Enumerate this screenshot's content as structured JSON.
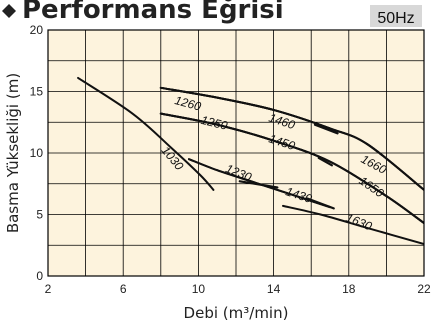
{
  "header": {
    "title": "Performans Eğrisi",
    "frequency_badge": "50Hz"
  },
  "colors": {
    "plot_background": "#fdf3dd",
    "grid": "#000000",
    "curves": "#111111",
    "badge_background": "#d8d8d8"
  },
  "chart_data": {
    "type": "line",
    "title": "Performans Eğrisi",
    "xlabel": "Debi (m³/min)",
    "ylabel": "Basma Yüksekliği (m)",
    "xlim": [
      2,
      22
    ],
    "ylim": [
      0,
      20
    ],
    "xticks": [
      2,
      6,
      10,
      14,
      18,
      22
    ],
    "yticks": [
      0,
      5,
      10,
      15,
      20
    ],
    "grid": true,
    "series": [
      {
        "name": "1030",
        "x": [
          3.6,
          6.5,
          8.5,
          10.1,
          10.8
        ],
        "y": [
          16.1,
          13.2,
          10.5,
          8.2,
          7.0
        ]
      },
      {
        "name": "1260",
        "x": [
          8.0,
          11.0,
          14.0,
          17.0,
          19.0,
          22.0
        ],
        "y": [
          15.3,
          14.5,
          13.5,
          12.0,
          10.7,
          7.0
        ]
      },
      {
        "name": "1460",
        "x": [
          8.0,
          11.0,
          14.0,
          17.0,
          19.0,
          22.0
        ],
        "y": [
          15.3,
          14.5,
          13.5,
          12.0,
          10.7,
          7.0
        ]
      },
      {
        "name": "1660",
        "x": [
          8.0,
          11.0,
          14.0,
          17.0,
          19.0,
          22.0
        ],
        "y": [
          15.3,
          14.5,
          13.5,
          12.0,
          10.7,
          7.0
        ]
      },
      {
        "name": "1250",
        "x": [
          8.0,
          11.0,
          14.0,
          17.0,
          20.0,
          22.0
        ],
        "y": [
          13.2,
          12.3,
          11.0,
          9.3,
          6.5,
          4.3
        ]
      },
      {
        "name": "1450",
        "x": [
          8.0,
          11.0,
          14.0,
          17.0,
          20.0,
          22.0
        ],
        "y": [
          13.2,
          12.3,
          11.0,
          9.3,
          6.5,
          4.3
        ]
      },
      {
        "name": "1650",
        "x": [
          8.0,
          11.0,
          14.0,
          17.0,
          20.0,
          22.0
        ],
        "y": [
          13.2,
          12.3,
          11.0,
          9.3,
          6.5,
          4.3
        ]
      },
      {
        "name": "1230",
        "x": [
          9.5,
          11.0,
          13.0,
          15.0,
          17.0
        ],
        "y": [
          9.5,
          8.6,
          7.6,
          6.6,
          5.6
        ]
      },
      {
        "name": "1430",
        "x": [
          9.5,
          11.0,
          13.0,
          15.0,
          17.0
        ],
        "y": [
          9.5,
          8.6,
          7.6,
          6.6,
          5.6
        ]
      },
      {
        "name": "1630",
        "x": [
          14.5,
          16.5,
          19.0,
          22.0
        ],
        "y": [
          5.7,
          5.0,
          3.9,
          2.6
        ]
      }
    ],
    "segment_marks": [
      {
        "x": [
          12.2,
          14.2
        ],
        "y": [
          7.7,
          7.2
        ]
      },
      {
        "x": [
          15.8,
          17.2
        ],
        "y": [
          6.3,
          5.5
        ]
      },
      {
        "x": [
          16.4,
          17.1
        ],
        "y": [
          9.6,
          9.0
        ]
      },
      {
        "x": [
          16.2,
          17.4
        ],
        "y": [
          12.3,
          11.6
        ]
      }
    ],
    "curve_labels": [
      {
        "text": "1260",
        "x": 8.7,
        "y": 14.0,
        "rotate": 15
      },
      {
        "text": "1460",
        "x": 13.7,
        "y": 12.6,
        "rotate": 18
      },
      {
        "text": "1660",
        "x": 18.6,
        "y": 9.3,
        "rotate": 28
      },
      {
        "text": "1250",
        "x": 10.1,
        "y": 12.4,
        "rotate": 14
      },
      {
        "text": "1450",
        "x": 13.7,
        "y": 10.9,
        "rotate": 18
      },
      {
        "text": "1650",
        "x": 18.5,
        "y": 7.6,
        "rotate": 35
      },
      {
        "text": "1030",
        "x": 8.0,
        "y": 10.2,
        "rotate": 50
      },
      {
        "text": "1230",
        "x": 11.4,
        "y": 8.5,
        "rotate": 22
      },
      {
        "text": "1430",
        "x": 14.6,
        "y": 6.6,
        "rotate": 18
      },
      {
        "text": "1630",
        "x": 17.8,
        "y": 4.5,
        "rotate": 22
      }
    ]
  }
}
